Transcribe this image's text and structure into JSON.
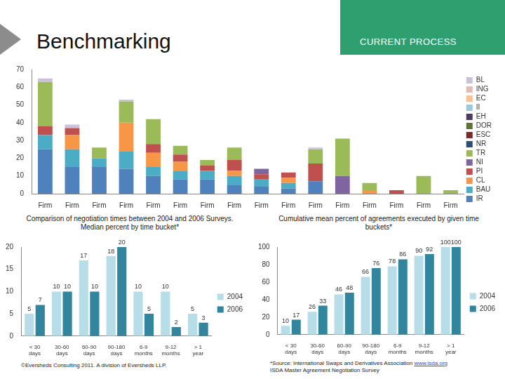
{
  "header": {
    "title": "Benchmarking",
    "section": "CURRENT PROCESS"
  },
  "chart_data": [
    {
      "type": "bar",
      "stacked": true,
      "legend": "right",
      "grid": false,
      "categories": [
        "Firm",
        "Firm",
        "Firm",
        "Firm",
        "Firm",
        "Firm",
        "Firm",
        "Firm",
        "Firm",
        "Firm",
        "Firm",
        "Firm",
        "Firm",
        "Firm",
        "Firm",
        "Firm"
      ],
      "ylim": [
        0,
        70
      ],
      "yticks": [
        0,
        10,
        20,
        30,
        40,
        50,
        60,
        70
      ],
      "series": [
        {
          "name": "BL",
          "color": "#ccc1da",
          "values": [
            2,
            2,
            0,
            1,
            0,
            0,
            0,
            0,
            0,
            0,
            1,
            0,
            0,
            0,
            0,
            0
          ]
        },
        {
          "name": "ING",
          "color": "#e6b9b8",
          "values": [
            0,
            0,
            0,
            0,
            0,
            0,
            0,
            0,
            0,
            0,
            0,
            0,
            0,
            0,
            0,
            0
          ]
        },
        {
          "name": "EC",
          "color": "#fac090",
          "values": [
            0,
            0,
            0,
            0,
            0,
            0,
            0,
            0,
            0,
            0,
            0,
            0,
            0,
            0,
            0,
            0
          ]
        },
        {
          "name": "II",
          "color": "#93cddd",
          "values": [
            0,
            0,
            0,
            0,
            0,
            0,
            0,
            0,
            0,
            0,
            0,
            0,
            0,
            0,
            0,
            0
          ]
        },
        {
          "name": "EH",
          "color": "#4d3b62",
          "values": [
            0,
            0,
            0,
            0,
            0,
            0,
            0,
            0,
            0,
            0,
            0,
            0,
            0,
            0,
            0,
            0
          ]
        },
        {
          "name": "DOR",
          "color": "#5f7530",
          "values": [
            0,
            0,
            0,
            0,
            0,
            0,
            0,
            0,
            0,
            0,
            0,
            0,
            0,
            0,
            0,
            0
          ]
        },
        {
          "name": "ESC",
          "color": "#772c2a",
          "values": [
            0,
            0,
            0,
            0,
            0,
            0,
            0,
            0,
            0,
            0,
            0,
            0,
            0,
            0,
            0,
            0
          ]
        },
        {
          "name": "NR",
          "color": "#2c4d75",
          "values": [
            0,
            0,
            0,
            0,
            0,
            0,
            0,
            0,
            0,
            0,
            0,
            0,
            0,
            0,
            0,
            0
          ]
        },
        {
          "name": "TR",
          "color": "#9bbb59",
          "values": [
            25,
            0,
            6,
            12,
            14,
            5,
            3,
            7,
            0,
            0,
            8,
            21,
            4,
            0,
            10,
            2
          ]
        },
        {
          "name": "NI",
          "color": "#8064a2",
          "values": [
            0,
            0,
            0,
            0,
            0,
            0,
            0,
            0,
            3,
            0,
            0,
            10,
            0,
            0,
            0,
            0
          ]
        },
        {
          "name": "PI",
          "color": "#c0504d",
          "values": [
            5,
            4,
            0,
            0,
            5,
            4,
            3,
            6,
            3,
            3,
            10,
            0,
            0,
            2,
            0,
            0
          ]
        },
        {
          "name": "CL",
          "color": "#f79646",
          "values": [
            0,
            8,
            0,
            16,
            8,
            5,
            0,
            3,
            0,
            3,
            0,
            0,
            2,
            0,
            0,
            0
          ]
        },
        {
          "name": "BAU",
          "color": "#4bacc6",
          "values": [
            8,
            10,
            5,
            10,
            5,
            5,
            5,
            5,
            4,
            3,
            0,
            0,
            0,
            0,
            0,
            0
          ]
        },
        {
          "name": "IR",
          "color": "#4f81bd",
          "values": [
            25,
            15,
            15,
            14,
            10,
            8,
            8,
            5,
            4,
            3,
            7,
            0,
            0,
            0,
            0,
            0
          ]
        }
      ]
    },
    {
      "type": "bar",
      "title": "Comparison of negotiation times between 2004 and 2006 Surveys. Median percent by time bucket*",
      "legend": "right",
      "grid": false,
      "data_labels": true,
      "categories": [
        "< 30 days",
        "30-60 days",
        "60-90 days",
        "90-180 days",
        "6-9 months",
        "9-12 months",
        "> 1 year"
      ],
      "ylim": [
        0,
        20
      ],
      "yticks": [
        0,
        5,
        10,
        15,
        20
      ],
      "series": [
        {
          "name": "2004",
          "color": "#b7dde8",
          "values": [
            5,
            10,
            17,
            18,
            10,
            10,
            5
          ]
        },
        {
          "name": "2006",
          "color": "#31859c",
          "values": [
            7,
            10,
            10,
            20,
            5,
            2,
            3
          ]
        }
      ]
    },
    {
      "type": "bar",
      "title": "Cumulative mean percent of agreements executed by given time buckets*",
      "legend": "right",
      "grid": false,
      "data_labels": true,
      "categories": [
        "< 30 days",
        "30-60 days",
        "60-90 days",
        "90-180 days",
        "6-9 months",
        "9-12 months",
        "> 1 year"
      ],
      "ylim": [
        0,
        100
      ],
      "yticks": [
        0,
        20,
        40,
        60,
        80,
        100
      ],
      "series": [
        {
          "name": "2004",
          "color": "#b7dde8",
          "values": [
            10,
            26,
            46,
            66,
            78,
            90,
            100
          ]
        },
        {
          "name": "2006",
          "color": "#31859c",
          "values": [
            17,
            33,
            48,
            76,
            86,
            92,
            100
          ]
        }
      ]
    }
  ],
  "footer": {
    "left": "©Eversheds Consulting 2011. A division of Eversheds LLP.",
    "source_text": "*Source: International Swaps and Derivatives Association",
    "source_link": "www.isda.org",
    "source_note": "ISDA Master Agreement Negotiation Survey"
  }
}
